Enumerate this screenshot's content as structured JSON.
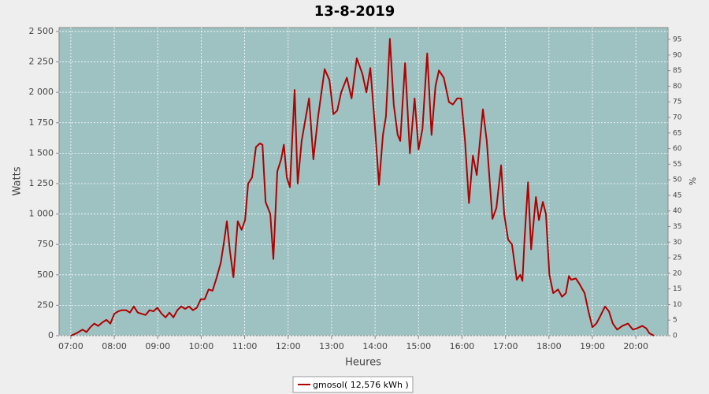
{
  "chart_data": {
    "type": "line",
    "title": "13-8-2019",
    "x_label": "Heures",
    "y_label": "Watts",
    "y2_label": "%",
    "xlim": [
      6.73,
      20.74
    ],
    "xticks": [
      {
        "value": 7,
        "label": "07:00"
      },
      {
        "value": 8,
        "label": "08:00"
      },
      {
        "value": 9,
        "label": "09:00"
      },
      {
        "value": 10,
        "label": "10:00"
      },
      {
        "value": 11,
        "label": "11:00"
      },
      {
        "value": 12,
        "label": "12:00"
      },
      {
        "value": 13,
        "label": "13:00"
      },
      {
        "value": 14,
        "label": "14:00"
      },
      {
        "value": 15,
        "label": "15:00"
      },
      {
        "value": 16,
        "label": "16:00"
      },
      {
        "value": 17,
        "label": "17:00"
      },
      {
        "value": 18,
        "label": "18:00"
      },
      {
        "value": 19,
        "label": "19:00"
      },
      {
        "value": 20,
        "label": "20:00"
      }
    ],
    "ylim": [
      0,
      2532
    ],
    "yticks": [
      0,
      250,
      500,
      750,
      {
        "value": 1000,
        "label": "1 000"
      },
      {
        "value": 1250,
        "label": "1 250"
      },
      {
        "value": 1500,
        "label": "1 500"
      },
      {
        "value": 1750,
        "label": "1 750"
      },
      {
        "value": 2000,
        "label": "2 000"
      },
      {
        "value": 2250,
        "label": "2 250"
      },
      {
        "value": 2500,
        "label": "2 500"
      }
    ],
    "y2lim": [
      0,
      98.8
    ],
    "y2ticks": [
      0,
      5,
      10,
      15,
      20,
      25,
      30,
      35,
      40,
      45,
      50,
      55,
      60,
      65,
      70,
      75,
      80,
      85,
      90,
      95
    ],
    "grid": true,
    "legend": "bottom",
    "x": [
      7.0,
      7.13,
      7.27,
      7.36,
      7.45,
      7.54,
      7.63,
      7.73,
      7.82,
      7.91,
      8.0,
      8.09,
      8.18,
      8.27,
      8.36,
      8.45,
      8.54,
      8.63,
      8.72,
      8.81,
      8.9,
      8.99,
      9.09,
      9.18,
      9.27,
      9.36,
      9.45,
      9.54,
      9.63,
      9.72,
      9.81,
      9.9,
      9.99,
      10.08,
      10.17,
      10.26,
      10.35,
      10.45,
      10.52,
      10.59,
      10.66,
      10.74,
      10.84,
      10.93,
      11.01,
      11.08,
      11.17,
      11.26,
      11.35,
      11.41,
      11.48,
      11.59,
      11.66,
      11.75,
      11.84,
      11.9,
      11.97,
      12.04,
      12.15,
      12.22,
      12.31,
      12.48,
      12.58,
      12.69,
      12.84,
      12.95,
      13.04,
      13.13,
      13.22,
      13.35,
      13.46,
      13.58,
      13.71,
      13.8,
      13.89,
      13.98,
      14.09,
      14.18,
      14.25,
      14.34,
      14.43,
      14.52,
      14.58,
      14.69,
      14.8,
      14.91,
      15.0,
      15.09,
      15.2,
      15.3,
      15.39,
      15.47,
      15.58,
      15.7,
      15.79,
      15.89,
      15.98,
      16.07,
      16.16,
      16.25,
      16.34,
      16.48,
      16.57,
      16.7,
      16.79,
      16.9,
      16.97,
      17.06,
      17.15,
      17.26,
      17.34,
      17.39,
      17.44,
      17.52,
      17.59,
      17.7,
      17.77,
      17.86,
      17.93,
      18.01,
      18.1,
      18.21,
      18.3,
      18.39,
      18.46,
      18.51,
      18.62,
      18.71,
      18.82,
      18.91,
      19.0,
      19.09,
      19.18,
      19.29,
      19.38,
      19.47,
      19.57,
      19.69,
      19.82,
      19.93,
      20.02,
      20.15,
      20.24,
      20.31,
      20.42
    ],
    "series": [
      {
        "name": "gmosol( 12,576 kWh )",
        "color": "#b00000",
        "values": [
          0,
          20,
          50,
          30,
          70,
          100,
          80,
          110,
          130,
          100,
          180,
          200,
          210,
          210,
          190,
          240,
          190,
          180,
          170,
          210,
          200,
          230,
          180,
          150,
          190,
          150,
          210,
          240,
          220,
          240,
          210,
          230,
          300,
          300,
          380,
          370,
          470,
          600,
          760,
          940,
          700,
          480,
          940,
          870,
          950,
          1250,
          1300,
          1550,
          1580,
          1570,
          1100,
          1000,
          630,
          1350,
          1450,
          1570,
          1300,
          1220,
          2020,
          1250,
          1600,
          1950,
          1450,
          1800,
          2190,
          2100,
          1820,
          1850,
          2000,
          2120,
          1950,
          2280,
          2150,
          2000,
          2200,
          1800,
          1240,
          1650,
          1800,
          2440,
          1900,
          1650,
          1600,
          2240,
          1500,
          1950,
          1530,
          1700,
          2320,
          1650,
          2050,
          2180,
          2120,
          1920,
          1900,
          1950,
          1950,
          1600,
          1090,
          1480,
          1320,
          1860,
          1600,
          960,
          1050,
          1400,
          1000,
          790,
          750,
          460,
          500,
          450,
          800,
          1260,
          710,
          1140,
          950,
          1100,
          1000,
          500,
          350,
          380,
          320,
          350,
          490,
          460,
          470,
          420,
          350,
          200,
          70,
          100,
          160,
          240,
          200,
          100,
          50,
          80,
          100,
          50,
          60,
          80,
          60,
          20,
          0
        ]
      }
    ]
  }
}
